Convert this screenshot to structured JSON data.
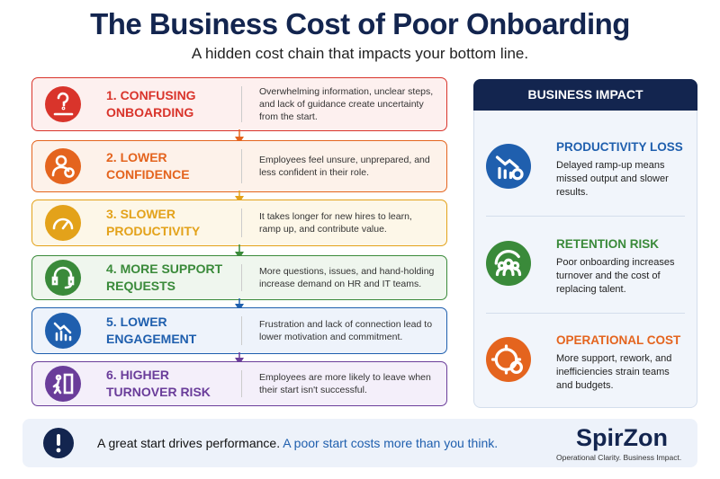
{
  "header": {
    "title": "The Business Cost of Poor Onboarding",
    "subtitle": "A hidden cost chain that impacts your bottom line."
  },
  "steps": [
    {
      "title": "1. CONFUSING ONBOARDING",
      "text": "Overwhelming information, unclear steps, and lack of guidance create uncertainty from the start."
    },
    {
      "title": "2. LOWER CONFIDENCE",
      "text": "Employees feel unsure, unprepared, and less confident in their role."
    },
    {
      "title": "3. SLOWER PRODUCTIVITY",
      "text": "It takes longer for new hires to learn, ramp up, and contribute value."
    },
    {
      "title": "4. MORE SUPPORT REQUESTS",
      "text": "More questions, issues, and hand-holding increase demand on HR and IT teams."
    },
    {
      "title": "5. LOWER ENGAGEMENT",
      "text": "Frustration and lack of connection lead to lower motivation and commitment."
    },
    {
      "title": "6. HIGHER TURNOVER RISK",
      "text": "Employees are more likely to leave when their start isn't successful."
    }
  ],
  "impact": {
    "title": "BUSINESS IMPACT",
    "items": [
      {
        "title": "PRODUCTIVITY LOSS",
        "text": "Delayed ramp-up means missed output and slower results."
      },
      {
        "title": "RETENTION RISK",
        "text": "Poor onboarding increases turnover and the cost of replacing talent."
      },
      {
        "title": "OPERATIONAL COST",
        "text": "More support, rework, and inefficiencies strain teams and budgets."
      }
    ]
  },
  "footer": {
    "message": "A great start drives performance.",
    "highlight": "A poor start costs more than you think.",
    "brand": "SpirZon",
    "tagline": "Operational Clarity. Business Impact."
  }
}
